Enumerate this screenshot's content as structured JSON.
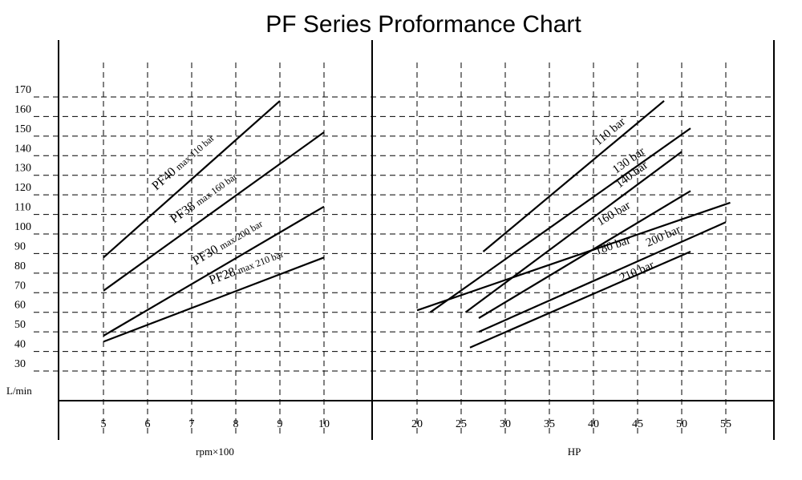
{
  "chart_data": {
    "type": "line",
    "title": "PF Series Proformance Chart",
    "ylabel": "L/min",
    "y_ticks": [
      30,
      40,
      50,
      60,
      70,
      80,
      90,
      100,
      110,
      120,
      130,
      140,
      150,
      160,
      170
    ],
    "panels": [
      {
        "xlabel": "rpm×100",
        "x_ticks": [
          5,
          6,
          7,
          8,
          9,
          10
        ],
        "series": [
          {
            "name": "PF40 max 110 bar",
            "label_main": "PF40",
            "label_sub": "max 110 bar",
            "x": [
              5,
              9
            ],
            "y": [
              88,
              168
            ]
          },
          {
            "name": "PF38 max 160 bar",
            "label_main": "PF38",
            "label_sub": "max 160 bar",
            "x": [
              5,
              10
            ],
            "y": [
              71,
              152
            ]
          },
          {
            "name": "PF30 max 200 bar",
            "label_main": "PF30",
            "label_sub": "max 200 bar",
            "x": [
              5,
              10
            ],
            "y": [
              48,
              114
            ]
          },
          {
            "name": "PF28 max 210 bar",
            "label_main": "PF28",
            "label_sub": "max 210 bar",
            "x": [
              5,
              10
            ],
            "y": [
              45,
              88
            ]
          }
        ]
      },
      {
        "xlabel": "HP",
        "x_ticks": [
          20,
          25,
          30,
          35,
          40,
          45,
          50,
          55
        ],
        "series": [
          {
            "name": "110 bar",
            "x": [
              27.5,
              48
            ],
            "y": [
              91,
              168
            ]
          },
          {
            "name": "130 bar",
            "x": [
              21.5,
              51
            ],
            "y": [
              60,
              154
            ]
          },
          {
            "name": "140 bar",
            "x": [
              25.5,
              50
            ],
            "y": [
              60,
              142
            ]
          },
          {
            "name": "160 bar",
            "x": [
              27,
              51
            ],
            "y": [
              57,
              122
            ]
          },
          {
            "name": "180 bar",
            "x": [
              20,
              55.5
            ],
            "y": [
              61,
              116
            ]
          },
          {
            "name": "200 bar",
            "x": [
              27,
              55
            ],
            "y": [
              50,
              106
            ]
          },
          {
            "name": "210 bar",
            "x": [
              26,
              51
            ],
            "y": [
              42,
              91
            ]
          }
        ]
      }
    ]
  }
}
